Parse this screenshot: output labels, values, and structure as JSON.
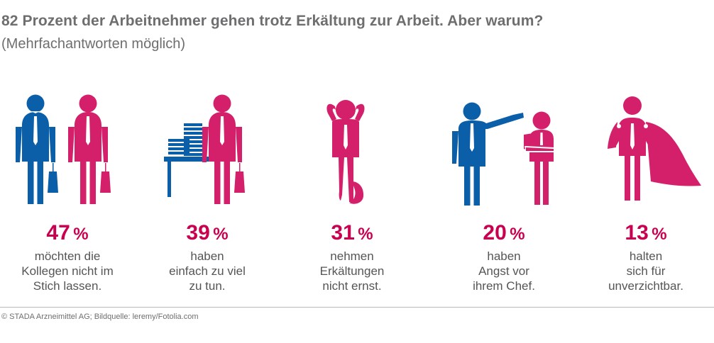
{
  "title": "82 Prozent der Arbeitnehmer gehen trotz Erkältung zur Arbeit. Aber warum?",
  "subtitle": "(Mehrfachantworten möglich)",
  "unit": "%",
  "colors": {
    "accent": "#c8004f",
    "blue": "#0b5ea8",
    "text": "#555557",
    "title": "#6e6e70"
  },
  "chart_data": {
    "type": "bar",
    "title": "82 Prozent der Arbeitnehmer gehen trotz Erkältung zur Arbeit. Aber warum?",
    "subtitle": "(Mehrfachantworten möglich)",
    "categories": [
      "möchten die Kollegen nicht im Stich lassen.",
      "haben einfach zu viel zu tun.",
      "nehmen Erkältungen nicht ernst.",
      "haben Angst vor ihrem Chef.",
      "halten sich für unverzichtbar."
    ],
    "values": [
      47,
      39,
      31,
      20,
      13
    ],
    "unit": "%"
  },
  "stats": [
    {
      "value": "47",
      "icon": "two-businessmen-with-briefcases-icon",
      "lines": [
        "möchten die",
        "Kollegen nicht im",
        "Stich lassen."
      ]
    },
    {
      "value": "39",
      "icon": "businessman-at-desk-with-paper-stacks-icon",
      "lines": [
        "haben",
        "einfach zu viel",
        "zu tun."
      ]
    },
    {
      "value": "31",
      "icon": "relaxed-leaning-man-icon",
      "lines": [
        "nehmen",
        "Erkältungen",
        "nicht ernst."
      ]
    },
    {
      "value": "20",
      "icon": "boss-pointing-at-employee-icon",
      "lines": [
        "haben",
        "Angst vor",
        "ihrem Chef."
      ]
    },
    {
      "value": "13",
      "icon": "superhero-with-cape-icon",
      "lines": [
        "halten",
        "sich für",
        "unverzichtbar."
      ]
    }
  ],
  "credit": "© STADA Arzneimittel AG; Bildquelle: leremy/Fotolia.com"
}
